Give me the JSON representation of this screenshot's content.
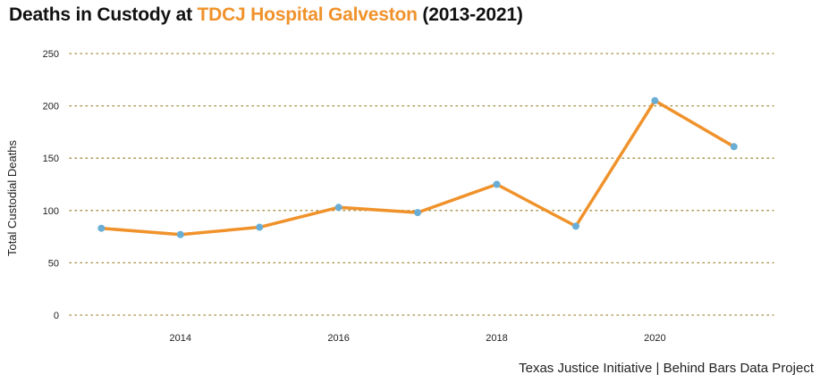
{
  "title": {
    "prefix": "Deaths in Custody at ",
    "highlight": "TDCJ Hospital Galveston",
    "suffix": " (2013-2021)"
  },
  "source": "Texas Justice Initiative | Behind Bars Data Project",
  "colors": {
    "line": "#f0922b",
    "point": "#6aaed6",
    "grid": "#a08a3c",
    "highlight": "#f0922b"
  },
  "chart_data": {
    "type": "line",
    "title": "Deaths in Custody at TDCJ Hospital Galveston (2013-2021)",
    "xlabel": "",
    "ylabel": "Total Custodial Deaths",
    "x": [
      2013,
      2014,
      2015,
      2016,
      2017,
      2018,
      2019,
      2020,
      2021
    ],
    "series": [
      {
        "values": [
          83,
          77,
          84,
          103,
          98,
          125,
          85,
          205,
          161
        ]
      }
    ],
    "x_ticks": [
      2014,
      2016,
      2018,
      2020
    ],
    "y_ticks": [
      0,
      50,
      100,
      150,
      200,
      250
    ],
    "xlim": [
      2012.6,
      2021.5
    ],
    "ylim": [
      0,
      250
    ],
    "grid": "horizontal dotted",
    "legend": "none"
  }
}
